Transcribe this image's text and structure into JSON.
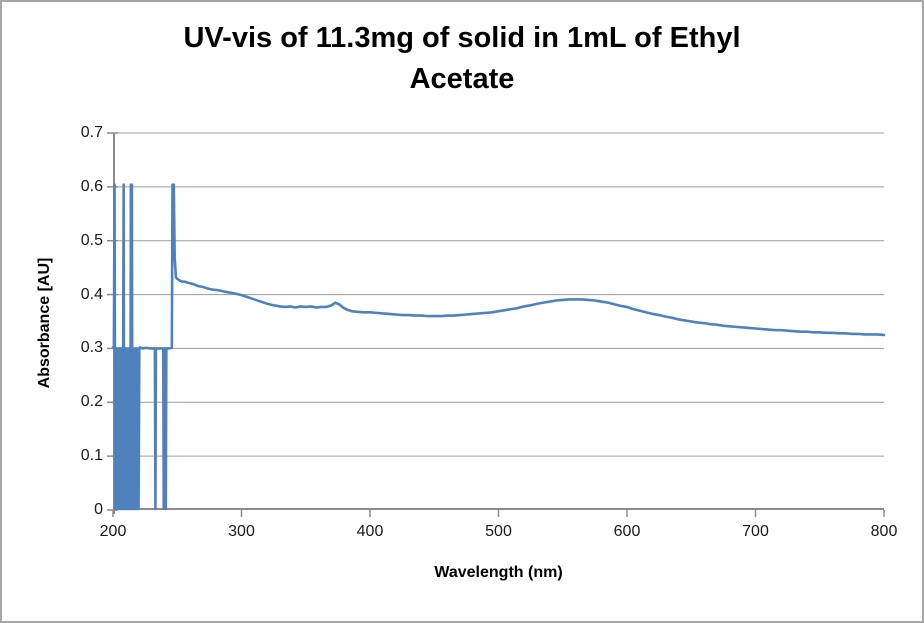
{
  "title": {
    "line1": "UV-vis of 11.3mg of solid in 1mL of Ethyl",
    "line2": "Acetate"
  },
  "chart_data": {
    "type": "line",
    "title": "UV-vis of 11.3mg of solid in 1mL of Ethyl Acetate",
    "xlabel": "Wavelength (nm)",
    "ylabel": "Absorbance [AU]",
    "xlim": [
      200,
      800
    ],
    "ylim": [
      0,
      0.7
    ],
    "x_ticks": [
      200,
      300,
      400,
      500,
      600,
      700,
      800
    ],
    "x_tick_labels": [
      "200",
      "300",
      "400",
      "500",
      "600",
      "700",
      "800"
    ],
    "y_ticks": [
      0,
      0.1,
      0.2,
      0.3,
      0.4,
      0.5,
      0.6,
      0.7
    ],
    "y_tick_labels": [
      "0",
      "0.1",
      "0.2",
      "0.3",
      "0.4",
      "0.5",
      "0.6",
      "0.7"
    ],
    "grid": "horizontal",
    "legend": "none",
    "colors": {
      "line": "#4f81bd",
      "grid": "#9d9d9d",
      "axis": "#8c8c8c",
      "border": "#a6a6a6",
      "text": "#000000"
    },
    "series": [
      {
        "name": "absorbance",
        "points": [
          [
            200,
            0.302
          ],
          [
            200.7,
            0.3
          ],
          [
            201.2,
            0.604
          ],
          [
            201.7,
            0.002
          ],
          [
            202.2,
            0.3
          ],
          [
            202.7,
            0.002
          ],
          [
            203.2,
            0.3
          ],
          [
            203.8,
            0.002
          ],
          [
            204.4,
            0.3
          ],
          [
            205,
            0.002
          ],
          [
            205.6,
            0.3
          ],
          [
            206.2,
            0.002
          ],
          [
            206.8,
            0.3
          ],
          [
            207.4,
            0.002
          ],
          [
            207.9,
            0.3
          ],
          [
            208.3,
            0.604
          ],
          [
            208.7,
            0.002
          ],
          [
            209.3,
            0.3
          ],
          [
            209.9,
            0.002
          ],
          [
            210.5,
            0.3
          ],
          [
            211.1,
            0.002
          ],
          [
            211.7,
            0.3
          ],
          [
            212.3,
            0.002
          ],
          [
            212.9,
            0.3
          ],
          [
            213.5,
            0.002
          ],
          [
            213.9,
            0.604
          ],
          [
            214.3,
            0.3
          ],
          [
            214.7,
            0.604
          ],
          [
            215.1,
            0.002
          ],
          [
            215.7,
            0.3
          ],
          [
            216.3,
            0.002
          ],
          [
            216.9,
            0.3
          ],
          [
            217.5,
            0.002
          ],
          [
            218.1,
            0.3
          ],
          [
            218.7,
            0.002
          ],
          [
            219.3,
            0.3
          ],
          [
            219.9,
            0.002
          ],
          [
            220.5,
            0.3
          ],
          [
            221,
            0.302
          ],
          [
            223,
            0.3
          ],
          [
            226,
            0.301
          ],
          [
            229,
            0.3
          ],
          [
            232.6,
            0.3
          ],
          [
            233,
            0.002
          ],
          [
            233.4,
            0.3
          ],
          [
            236,
            0.3
          ],
          [
            239.1,
            0.3
          ],
          [
            239.5,
            0.002
          ],
          [
            239.9,
            0.3
          ],
          [
            240.7,
            0.3
          ],
          [
            241.1,
            0.002
          ],
          [
            241.5,
            0.3
          ],
          [
            243,
            0.3
          ],
          [
            245.8,
            0.301
          ],
          [
            246.3,
            0.604
          ],
          [
            247.3,
            0.604
          ],
          [
            248,
            0.468
          ],
          [
            249,
            0.432
          ],
          [
            250,
            0.429
          ],
          [
            252,
            0.426
          ],
          [
            254,
            0.424
          ],
          [
            256,
            0.424
          ],
          [
            258,
            0.422
          ],
          [
            260,
            0.421
          ],
          [
            263,
            0.419
          ],
          [
            266,
            0.416
          ],
          [
            270,
            0.414
          ],
          [
            274,
            0.411
          ],
          [
            278,
            0.409
          ],
          [
            282,
            0.408
          ],
          [
            286,
            0.406
          ],
          [
            290,
            0.404
          ],
          [
            295,
            0.402
          ],
          [
            300,
            0.399
          ],
          [
            305,
            0.395
          ],
          [
            310,
            0.391
          ],
          [
            315,
            0.387
          ],
          [
            320,
            0.383
          ],
          [
            325,
            0.38
          ],
          [
            330,
            0.378
          ],
          [
            334,
            0.377
          ],
          [
            338,
            0.378
          ],
          [
            342,
            0.376
          ],
          [
            346,
            0.378
          ],
          [
            350,
            0.377
          ],
          [
            354,
            0.378
          ],
          [
            358,
            0.376
          ],
          [
            362,
            0.377
          ],
          [
            366,
            0.377
          ],
          [
            370,
            0.38
          ],
          [
            373,
            0.385
          ],
          [
            376,
            0.382
          ],
          [
            379,
            0.376
          ],
          [
            382,
            0.372
          ],
          [
            386,
            0.369
          ],
          [
            390,
            0.368
          ],
          [
            395,
            0.367
          ],
          [
            400,
            0.367
          ],
          [
            405,
            0.366
          ],
          [
            410,
            0.365
          ],
          [
            415,
            0.364
          ],
          [
            420,
            0.363
          ],
          [
            425,
            0.362
          ],
          [
            430,
            0.362
          ],
          [
            435,
            0.361
          ],
          [
            440,
            0.361
          ],
          [
            445,
            0.36
          ],
          [
            450,
            0.36
          ],
          [
            455,
            0.36
          ],
          [
            460,
            0.361
          ],
          [
            465,
            0.361
          ],
          [
            470,
            0.362
          ],
          [
            475,
            0.363
          ],
          [
            480,
            0.364
          ],
          [
            485,
            0.365
          ],
          [
            490,
            0.366
          ],
          [
            495,
            0.367
          ],
          [
            500,
            0.369
          ],
          [
            505,
            0.371
          ],
          [
            510,
            0.373
          ],
          [
            515,
            0.375
          ],
          [
            520,
            0.378
          ],
          [
            525,
            0.38
          ],
          [
            530,
            0.383
          ],
          [
            535,
            0.385
          ],
          [
            540,
            0.387
          ],
          [
            545,
            0.389
          ],
          [
            550,
            0.39
          ],
          [
            555,
            0.391
          ],
          [
            560,
            0.391
          ],
          [
            565,
            0.391
          ],
          [
            570,
            0.39
          ],
          [
            575,
            0.389
          ],
          [
            580,
            0.387
          ],
          [
            585,
            0.385
          ],
          [
            590,
            0.382
          ],
          [
            595,
            0.379
          ],
          [
            600,
            0.377
          ],
          [
            605,
            0.373
          ],
          [
            610,
            0.37
          ],
          [
            615,
            0.367
          ],
          [
            620,
            0.364
          ],
          [
            625,
            0.362
          ],
          [
            630,
            0.359
          ],
          [
            635,
            0.357
          ],
          [
            640,
            0.354
          ],
          [
            645,
            0.352
          ],
          [
            650,
            0.35
          ],
          [
            655,
            0.348
          ],
          [
            660,
            0.347
          ],
          [
            665,
            0.345
          ],
          [
            670,
            0.344
          ],
          [
            675,
            0.342
          ],
          [
            680,
            0.341
          ],
          [
            685,
            0.34
          ],
          [
            690,
            0.339
          ],
          [
            695,
            0.338
          ],
          [
            700,
            0.337
          ],
          [
            705,
            0.336
          ],
          [
            710,
            0.335
          ],
          [
            715,
            0.334
          ],
          [
            720,
            0.334
          ],
          [
            725,
            0.333
          ],
          [
            730,
            0.332
          ],
          [
            735,
            0.331
          ],
          [
            740,
            0.331
          ],
          [
            745,
            0.33
          ],
          [
            750,
            0.33
          ],
          [
            755,
            0.329
          ],
          [
            760,
            0.329
          ],
          [
            765,
            0.328
          ],
          [
            770,
            0.328
          ],
          [
            775,
            0.327
          ],
          [
            780,
            0.327
          ],
          [
            785,
            0.326
          ],
          [
            790,
            0.326
          ],
          [
            795,
            0.326
          ],
          [
            800,
            0.325
          ]
        ]
      }
    ]
  }
}
